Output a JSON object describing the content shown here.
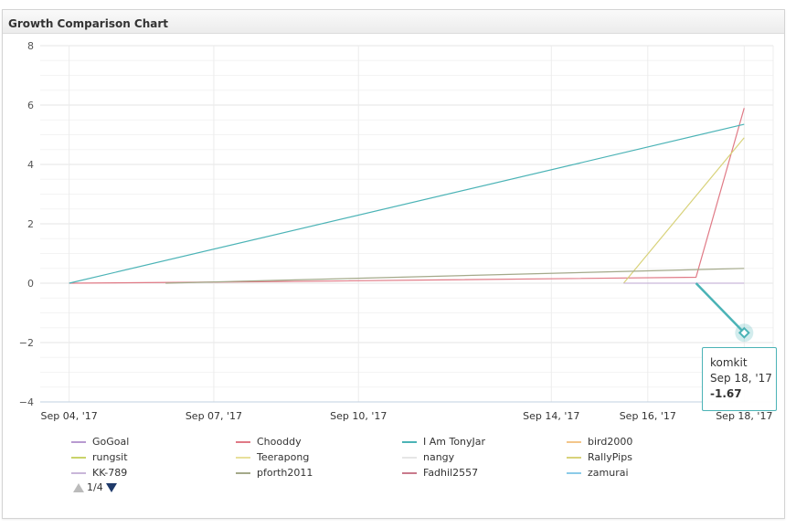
{
  "panel": {
    "title": "Growth Comparison Chart"
  },
  "chart_data": {
    "type": "line",
    "ylim": [
      -4,
      8
    ],
    "yticks": [
      -4,
      -2,
      0,
      2,
      4,
      6,
      8
    ],
    "xlim": [
      3.4,
      18.6
    ],
    "xticks": [
      {
        "value": 4,
        "label": "Sep 04, '17"
      },
      {
        "value": 7,
        "label": "Sep 07, '17"
      },
      {
        "value": 10,
        "label": "Sep 10, '17"
      },
      {
        "value": 14,
        "label": "Sep 14, '17"
      },
      {
        "value": 16,
        "label": "Sep 16, '17"
      },
      {
        "value": 18,
        "label": "Sep 18, '17"
      }
    ],
    "series": [
      {
        "name": "GoGoal",
        "color": "#b89ad0",
        "points": []
      },
      {
        "name": "Chooddy",
        "color": "#e07a86",
        "points": [
          [
            4,
            0
          ],
          [
            8,
            0.05
          ],
          [
            17,
            0.2
          ],
          [
            18,
            5.9
          ]
        ]
      },
      {
        "name": "I Am TonyJar",
        "color": "#4bb3b6",
        "points": [
          [
            4,
            0
          ],
          [
            18,
            5.35
          ]
        ]
      },
      {
        "name": "bird2000",
        "color": "#f3c68a",
        "points": []
      },
      {
        "name": "rungsit",
        "color": "#c9d36a",
        "points": []
      },
      {
        "name": "Teerapong",
        "color": "#e8e09a",
        "points": []
      },
      {
        "name": "nangy",
        "color": "#e6e6e6",
        "points": []
      },
      {
        "name": "RallyPips",
        "color": "#d8d27a",
        "points": [
          [
            15.5,
            0
          ],
          [
            18,
            4.9
          ]
        ]
      },
      {
        "name": "KK-789",
        "color": "#c9b6d9",
        "points": [
          [
            15.5,
            0
          ],
          [
            18,
            0
          ]
        ]
      },
      {
        "name": "pforth2011",
        "color": "#a4a98a",
        "points": [
          [
            6,
            0
          ],
          [
            18,
            0.5
          ]
        ]
      },
      {
        "name": "Fadhil2557",
        "color": "#c97a8c",
        "points": []
      },
      {
        "name": "zamurai",
        "color": "#8ccbe8",
        "points": []
      },
      {
        "name": "komkit",
        "color": "#4bb3b6",
        "points": [
          [
            17,
            0
          ],
          [
            18,
            -1.67
          ]
        ]
      }
    ],
    "legend_visible": [
      "GoGoal",
      "Chooddy",
      "I Am TonyJar",
      "bird2000",
      "rungsit",
      "Teerapong",
      "nangy",
      "RallyPips",
      "KK-789",
      "pforth2011",
      "Fadhil2557",
      "zamurai"
    ],
    "highlight": {
      "series": "komkit",
      "x": 18,
      "y": -1.67
    }
  },
  "legend_pager": {
    "text": "1/4"
  },
  "tooltip": {
    "name": "komkit",
    "date": "Sep 18, '17",
    "value": "-1.67"
  }
}
